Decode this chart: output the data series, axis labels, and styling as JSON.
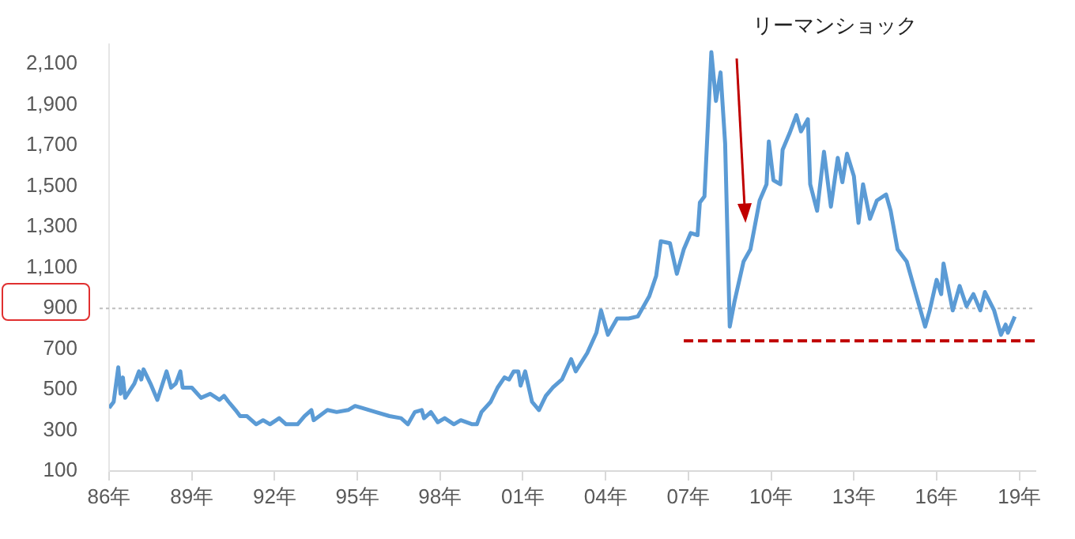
{
  "chart_data": {
    "type": "line",
    "x": [
      "1986-01",
      "1986-03",
      "1986-05",
      "1986-06",
      "1986-07",
      "1986-08",
      "1986-12",
      "1987-02",
      "1987-03",
      "1987-04",
      "1987-07",
      "1987-10",
      "1987-12",
      "1988-02",
      "1988-04",
      "1988-06",
      "1988-08",
      "1988-09",
      "1989-01",
      "1989-05",
      "1989-09",
      "1990-01",
      "1990-03",
      "1990-05",
      "1990-08",
      "1990-10",
      "1991-01",
      "1991-05",
      "1991-08",
      "1991-11",
      "1992-03",
      "1992-06",
      "1992-11",
      "1993-02",
      "1993-05",
      "1993-06",
      "1993-12",
      "1994-04",
      "1994-09",
      "1994-12",
      "1995-03",
      "1995-09",
      "1996-03",
      "1996-08",
      "1996-11",
      "1997-02",
      "1997-05",
      "1997-06",
      "1997-09",
      "1997-12",
      "1998-03",
      "1998-07",
      "1998-10",
      "1999-03",
      "1999-05",
      "1999-07",
      "1999-11",
      "2000-02",
      "2000-05",
      "2000-07",
      "2000-09",
      "2000-11",
      "2000-12",
      "2001-02",
      "2001-05",
      "2001-08",
      "2001-11",
      "2002-02",
      "2002-06",
      "2002-10",
      "2002-12",
      "2003-05",
      "2003-09",
      "2003-11",
      "2004-02",
      "2004-06",
      "2004-11",
      "2005-03",
      "2005-08",
      "2005-11",
      "2006-01",
      "2006-05",
      "2006-08",
      "2006-11",
      "2007-02",
      "2007-05",
      "2007-06",
      "2007-08",
      "2007-11",
      "2008-01",
      "2008-03",
      "2008-05",
      "2008-07",
      "2008-09",
      "2009-01",
      "2009-04",
      "2009-08",
      "2009-11",
      "2009-12",
      "2010-02",
      "2010-05",
      "2010-06",
      "2010-09",
      "2010-12",
      "2011-02",
      "2011-05",
      "2011-06",
      "2011-09",
      "2011-12",
      "2012-03",
      "2012-06",
      "2012-08",
      "2012-10",
      "2013-01",
      "2013-03",
      "2013-05",
      "2013-08",
      "2013-11",
      "2014-03",
      "2014-05",
      "2014-08",
      "2014-12",
      "2015-03",
      "2015-08",
      "2015-10",
      "2016-01",
      "2016-03",
      "2016-04",
      "2016-08",
      "2016-11",
      "2017-02",
      "2017-05",
      "2017-08",
      "2017-10",
      "2018-02",
      "2018-05",
      "2018-07",
      "2018-08",
      "2018-11"
    ],
    "series": [
      {
        "color": "#5b9bd5",
        "values": [
          410,
          440,
          610,
          480,
          560,
          460,
          530,
          590,
          550,
          600,
          530,
          450,
          520,
          590,
          510,
          530,
          590,
          510,
          510,
          460,
          480,
          450,
          470,
          440,
          400,
          370,
          370,
          330,
          350,
          330,
          360,
          330,
          330,
          370,
          400,
          350,
          400,
          390,
          400,
          420,
          410,
          390,
          370,
          360,
          330,
          390,
          400,
          360,
          390,
          340,
          360,
          330,
          350,
          330,
          330,
          390,
          440,
          510,
          560,
          550,
          590,
          590,
          520,
          590,
          440,
          400,
          470,
          510,
          550,
          650,
          590,
          680,
          780,
          890,
          770,
          850,
          850,
          860,
          960,
          1060,
          1230,
          1220,
          1070,
          1190,
          1270,
          1260,
          1420,
          1450,
          2160,
          1920,
          2060,
          1710,
          810,
          930,
          1130,
          1190,
          1430,
          1510,
          1720,
          1530,
          1510,
          1680,
          1760,
          1850,
          1770,
          1830,
          1510,
          1380,
          1670,
          1400,
          1640,
          1520,
          1660,
          1550,
          1320,
          1510,
          1340,
          1430,
          1460,
          1380,
          1190,
          1130,
          1010,
          810,
          890,
          1040,
          970,
          1120,
          890,
          1010,
          910,
          970,
          890,
          980,
          890,
          770,
          820,
          780,
          860
        ]
      },
      {
        "type": "line",
        "x": [
          "2006-11",
          "2019-08"
        ],
        "values": [
          740,
          740
        ],
        "color": "#c00000",
        "line_style": "dashed",
        "marker": "none"
      }
    ],
    "xlim": [
      "1986-01",
      "2019-08"
    ],
    "xticks": [
      {
        "value": "1986",
        "label": "86年"
      },
      {
        "value": "1989",
        "label": "89年"
      },
      {
        "value": "1992",
        "label": "92年"
      },
      {
        "value": "1995",
        "label": "95年"
      },
      {
        "value": "1998",
        "label": "98年"
      },
      {
        "value": "2001",
        "label": "01年"
      },
      {
        "value": "2004",
        "label": "04年"
      },
      {
        "value": "2007",
        "label": "07年"
      },
      {
        "value": "2010",
        "label": "10年"
      },
      {
        "value": "2013",
        "label": "13年"
      },
      {
        "value": "2016",
        "label": "16年"
      },
      {
        "value": "2019",
        "label": "19年"
      }
    ],
    "ylim": [
      100,
      2200
    ],
    "yticks": [
      100,
      300,
      500,
      700,
      900,
      {
        "value": 1100,
        "label": "1,100"
      },
      {
        "value": 1300,
        "label": "1,300"
      },
      {
        "value": 1500,
        "label": "1,500"
      },
      {
        "value": 1700,
        "label": "1,700"
      },
      {
        "value": 1900,
        "label": "1,900"
      },
      {
        "value": 2100,
        "label": "2,100"
      }
    ],
    "ref_lines": [
      {
        "axis": "y",
        "value": 900,
        "color": "#bfbfbf",
        "line_style": "dotted"
      }
    ],
    "annotations": [
      "リーマンショック"
    ],
    "grid": false,
    "legend": false,
    "marker": "none",
    "line_style": "solid"
  }
}
